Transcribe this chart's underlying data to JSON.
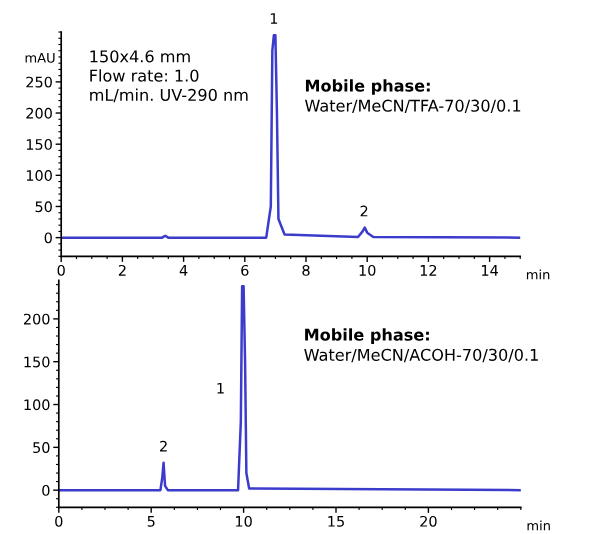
{
  "chart_data": [
    {
      "type": "line",
      "ylabel": "mAU",
      "xlabel": "min",
      "series": [
        {
          "color": "#3b3bcc",
          "x": [
            0,
            3.3,
            3.4,
            3.5,
            6.7,
            6.85,
            6.9,
            6.95,
            7.0,
            7.05,
            7.1,
            7.3,
            9.7,
            9.85,
            9.92,
            10.0,
            10.2,
            15
          ],
          "values": [
            0,
            0,
            3,
            0,
            0,
            50,
            300,
            325,
            325,
            200,
            30,
            5,
            1,
            10,
            16,
            8,
            1,
            0
          ]
        }
      ],
      "xlim": [
        0,
        15
      ],
      "xticks": [
        0,
        2,
        4,
        6,
        8,
        10,
        12,
        14
      ],
      "ylim": [
        -30,
        330
      ],
      "yticks": [
        0,
        50,
        100,
        150,
        200,
        250
      ],
      "grid": false,
      "legend": false,
      "marker": "none",
      "line_style": "solid",
      "annotations": [
        "150x4.6 mm\nFlow rate: 1.0\nmL/min. UV-290 nm",
        "Mobile phase:",
        "Water/MeCN/TFA-70/30/0.1",
        {
          "text": "1",
          "x": 6.95,
          "y": 325
        },
        {
          "text": "2",
          "x": 9.9,
          "y": 16
        }
      ]
    },
    {
      "type": "line",
      "xlabel": "min",
      "series": [
        {
          "color": "#3b3bcc",
          "x": [
            0,
            5.5,
            5.6,
            5.67,
            5.75,
            5.9,
            9.7,
            9.85,
            9.92,
            10.0,
            10.08,
            10.15,
            10.3,
            25
          ],
          "values": [
            0,
            0,
            15,
            32,
            5,
            0,
            0,
            80,
            238,
            238,
            150,
            20,
            2,
            0
          ]
        }
      ],
      "xlim": [
        0,
        25
      ],
      "xticks": [
        0,
        5,
        10,
        15,
        20
      ],
      "ylim": [
        -20,
        245
      ],
      "yticks": [
        0,
        50,
        100,
        150,
        200
      ],
      "grid": false,
      "legend": false,
      "marker": "none",
      "line_style": "solid",
      "annotations": [
        "1",
        "Mobile phase:",
        "Water/MeCN/ACOH-70/30/0.1",
        {
          "text": "2",
          "x": 5.67,
          "y": 32
        }
      ]
    }
  ]
}
